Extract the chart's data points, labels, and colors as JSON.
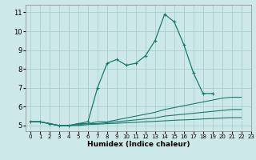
{
  "title": "",
  "xlabel": "Humidex (Indice chaleur)",
  "ylabel": "",
  "bg_color": "#cde8e8",
  "grid_color": "#aacece",
  "line_color": "#1a7a6e",
  "xlim": [
    -0.5,
    23
  ],
  "ylim": [
    4.7,
    11.4
  ],
  "yticks": [
    5,
    6,
    7,
    8,
    9,
    10,
    11
  ],
  "xticks": [
    0,
    1,
    2,
    3,
    4,
    5,
    6,
    7,
    8,
    9,
    10,
    11,
    12,
    13,
    14,
    15,
    16,
    17,
    18,
    19,
    20,
    21,
    22,
    23
  ],
  "series": [
    {
      "x": [
        0,
        1,
        2,
        3,
        4,
        5,
        6,
        7,
        8,
        9,
        10,
        11,
        12,
        13,
        14,
        15,
        16,
        17,
        18,
        19
      ],
      "y": [
        5.2,
        5.2,
        5.1,
        5.0,
        5.0,
        5.1,
        5.2,
        7.0,
        8.3,
        8.5,
        8.2,
        8.3,
        8.7,
        9.5,
        10.9,
        10.5,
        9.3,
        7.8,
        6.7,
        6.7
      ],
      "marker": true
    },
    {
      "x": [
        0,
        1,
        2,
        3,
        4,
        5,
        6,
        7,
        8,
        9,
        10,
        11,
        12,
        13,
        14,
        15,
        16,
        17,
        18,
        19,
        20,
        21,
        22
      ],
      "y": [
        5.2,
        5.2,
        5.1,
        5.0,
        5.0,
        5.1,
        5.1,
        5.2,
        5.2,
        5.3,
        5.4,
        5.5,
        5.6,
        5.7,
        5.85,
        5.95,
        6.05,
        6.15,
        6.25,
        6.35,
        6.45,
        6.5,
        6.5
      ],
      "marker": false
    },
    {
      "x": [
        0,
        1,
        2,
        3,
        4,
        5,
        6,
        7,
        8,
        9,
        10,
        11,
        12,
        13,
        14,
        15,
        16,
        17,
        18,
        19,
        20,
        21,
        22
      ],
      "y": [
        5.2,
        5.2,
        5.1,
        5.0,
        5.0,
        5.05,
        5.1,
        5.1,
        5.15,
        5.2,
        5.25,
        5.3,
        5.35,
        5.4,
        5.5,
        5.55,
        5.6,
        5.65,
        5.7,
        5.75,
        5.8,
        5.85,
        5.85
      ],
      "marker": false
    },
    {
      "x": [
        0,
        1,
        2,
        3,
        4,
        5,
        6,
        7,
        8,
        9,
        10,
        11,
        12,
        13,
        14,
        15,
        16,
        17,
        18,
        19,
        20,
        21,
        22
      ],
      "y": [
        5.2,
        5.2,
        5.1,
        5.0,
        5.0,
        5.0,
        5.05,
        5.07,
        5.1,
        5.12,
        5.15,
        5.17,
        5.2,
        5.22,
        5.25,
        5.28,
        5.3,
        5.32,
        5.35,
        5.37,
        5.4,
        5.42,
        5.42
      ],
      "marker": false
    }
  ]
}
